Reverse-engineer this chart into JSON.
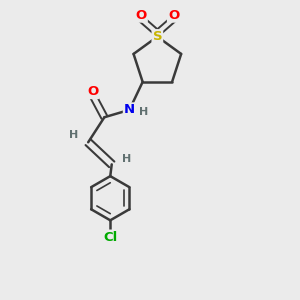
{
  "background_color": "#ebebeb",
  "bond_color": "#3a3a3a",
  "atom_colors": {
    "S": "#c8b400",
    "O": "#ff0000",
    "N": "#0000ee",
    "Cl": "#00aa00",
    "H": "#607070",
    "C": "#3a3a3a"
  },
  "figsize": [
    3.0,
    3.0
  ],
  "dpi": 100
}
